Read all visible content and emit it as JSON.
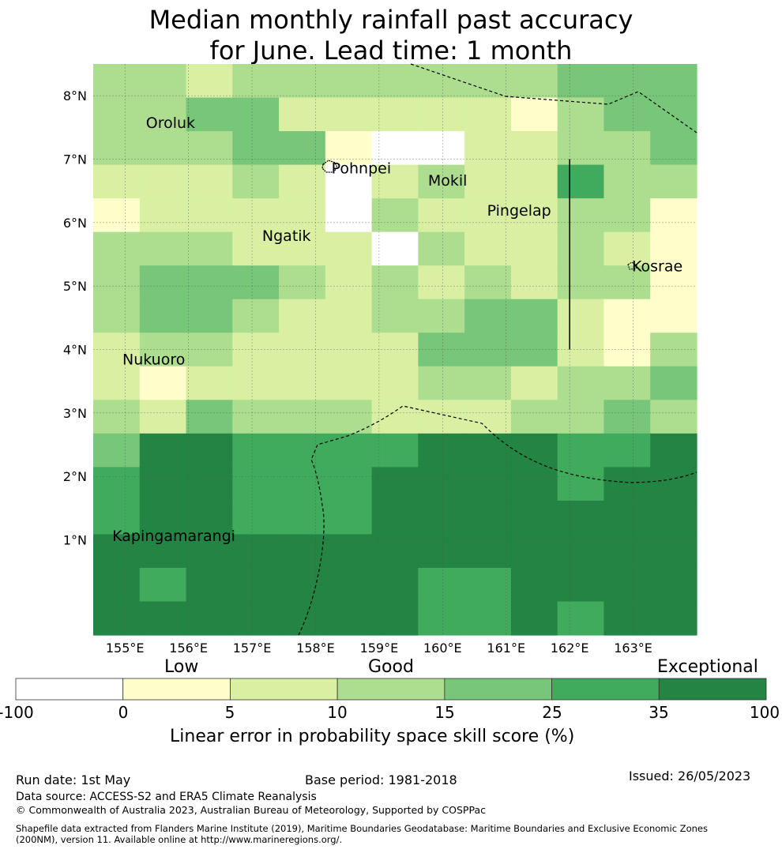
{
  "title": {
    "line1": "Median monthly rainfall past accuracy",
    "line2": "for June. Lead time: 1 month"
  },
  "map": {
    "lon_labels": [
      "155°E",
      "156°E",
      "157°E",
      "158°E",
      "159°E",
      "160°E",
      "161°E",
      "162°E",
      "163°E"
    ],
    "lat_labels": [
      "8°N",
      "7°N",
      "6°N",
      "5°N",
      "4°N",
      "3°N",
      "2°N",
      "1°N"
    ],
    "lon_range": [
      154.5,
      164.0
    ],
    "lat_range": [
      -0.5,
      8.5
    ],
    "cell_size_deg": [
      0.833,
      0.555
    ],
    "place_labels": [
      {
        "name": "Oroluk",
        "lon": 155.33,
        "lat": 7.58
      },
      {
        "name": "Pohnpei",
        "lon": 158.25,
        "lat": 6.86
      },
      {
        "name": "Mokil",
        "lon": 159.77,
        "lat": 6.67
      },
      {
        "name": "Pingelap",
        "lon": 160.7,
        "lat": 6.2
      },
      {
        "name": "Ngatik",
        "lon": 157.16,
        "lat": 5.8
      },
      {
        "name": "Kosrae",
        "lon": 162.98,
        "lat": 5.32
      },
      {
        "name": "Nukuoro",
        "lon": 154.96,
        "lat": 3.85
      },
      {
        "name": "Kapingamarangi",
        "lon": 154.8,
        "lat": 1.07
      }
    ],
    "class_colors": [
      "#ffffff",
      "#ffffcc",
      "#d9f0a3",
      "#addd8e",
      "#78c679",
      "#41ab5d",
      "#238443"
    ],
    "grid_rows_north_to_south": [
      "3323333333444",
      "3344222221344",
      "3334410022334",
      "2223202322533",
      "1222203222331",
      "3332220322321",
      "3444323232331",
      "3443223344211",
      "2332222444213",
      "2122222332334",
      "3243332223343",
      "4665555666556",
      "5665556666566",
      "5665556666666",
      "6666666666666",
      "6566666556666",
      "6666666556566"
    ],
    "line": {
      "lon": 162.0,
      "lat_from": 4.0,
      "lat_to": 7.0
    }
  },
  "colorbar": {
    "categories": [
      "Low",
      "Good",
      "Exceptional"
    ],
    "ticks": [
      "-100",
      "0",
      "5",
      "10",
      "15",
      "25",
      "35",
      "100"
    ],
    "colors": [
      "#ffffff",
      "#ffffcc",
      "#d9f0a3",
      "#addd8e",
      "#78c679",
      "#41ab5d",
      "#238443"
    ],
    "label": "Linear error in probability space skill score (%)"
  },
  "footer": {
    "run_date": "Run date: 1st May",
    "base_period": "Base period: 1981-2018",
    "issued": "Issued: 26/05/2023",
    "data_source": "Data source: ACCESS-S2 and ERA5 Climate Reanalysis",
    "copyright": "© Commonwealth of Australia 2023, Australian Bureau of Meteorology, Supported by COSPPac",
    "shapefile_line1": "Shapefile data extracted from Flanders Marine Institute (2019), Maritime Boundaries Geodatabase: Maritime Boundaries and Exclusive Economic Zones",
    "shapefile_line2": "(200NM), version 11. Available online at http://www.marineregions.org/."
  }
}
